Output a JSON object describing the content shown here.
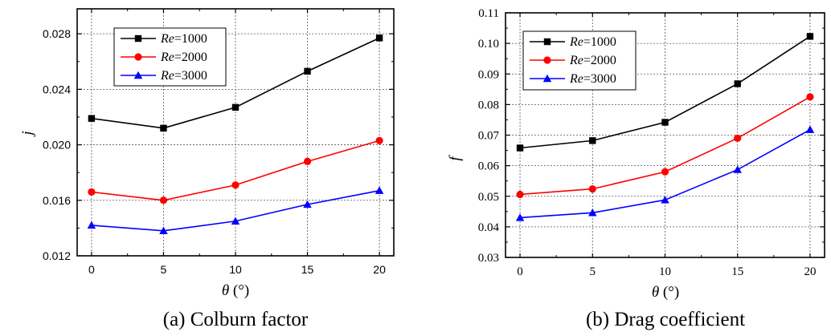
{
  "chart_data": [
    {
      "type": "line",
      "caption": "(a) Colburn factor",
      "xlabel": "θ (°)",
      "ylabel": "j",
      "x": [
        0,
        5,
        10,
        15,
        20
      ],
      "x_ticks": [
        "0",
        "5",
        "10",
        "15",
        "20"
      ],
      "y_ticks": [
        "0.012",
        "0.016",
        "0.020",
        "0.024",
        "0.028"
      ],
      "xlim": [
        -1,
        21
      ],
      "ylim": [
        0.012,
        0.0298
      ],
      "grid": true,
      "legend_position": "top-left",
      "series": [
        {
          "name": "Re=1000",
          "name_italic": "Re",
          "name_rest": "=1000",
          "color": "#000000",
          "marker": "square",
          "values": [
            0.0219,
            0.0212,
            0.0227,
            0.0253,
            0.0277
          ]
        },
        {
          "name": "Re=2000",
          "name_italic": "Re",
          "name_rest": "=2000",
          "color": "#ff0000",
          "marker": "circle",
          "values": [
            0.0166,
            0.016,
            0.0171,
            0.0188,
            0.0203
          ]
        },
        {
          "name": "Re=3000",
          "name_italic": "Re",
          "name_rest": "=3000",
          "color": "#0000ff",
          "marker": "triangle",
          "values": [
            0.0142,
            0.0138,
            0.0145,
            0.0157,
            0.0167
          ]
        }
      ]
    },
    {
      "type": "line",
      "caption": "(b) Drag coefficient",
      "xlabel": "θ (°)",
      "ylabel": "f",
      "x": [
        0,
        5,
        10,
        15,
        20
      ],
      "x_ticks": [
        "0",
        "5",
        "10",
        "15",
        "20"
      ],
      "y_ticks": [
        "0.03",
        "0.04",
        "0.05",
        "0.06",
        "0.07",
        "0.08",
        "0.09",
        "0.10",
        "0.11"
      ],
      "xlim": [
        -1,
        21
      ],
      "ylim": [
        0.03,
        0.11
      ],
      "grid": true,
      "legend_position": "top-left",
      "series": [
        {
          "name": "Re=1000",
          "name_italic": "Re",
          "name_rest": "=1000",
          "color": "#000000",
          "marker": "square",
          "values": [
            0.0658,
            0.0682,
            0.0742,
            0.0868,
            0.1023
          ]
        },
        {
          "name": "Re=2000",
          "name_italic": "Re",
          "name_rest": "=2000",
          "color": "#ff0000",
          "marker": "circle",
          "values": [
            0.0506,
            0.0524,
            0.058,
            0.069,
            0.0825
          ]
        },
        {
          "name": "Re=3000",
          "name_italic": "Re",
          "name_rest": "=3000",
          "color": "#0000ff",
          "marker": "triangle",
          "values": [
            0.043,
            0.0446,
            0.0488,
            0.0587,
            0.0718
          ]
        }
      ]
    }
  ]
}
